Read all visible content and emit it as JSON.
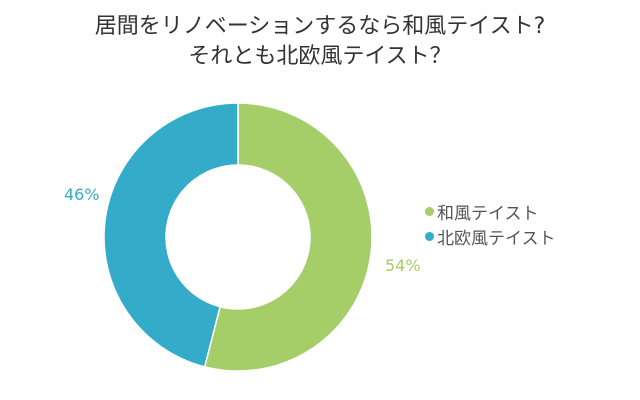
{
  "title": {
    "line1": "居間をリノベーションするなら和風テイスト?",
    "line2": "それとも北欧風テイスト？"
  },
  "colors": {
    "wafu": "#a5cd68",
    "hokuo": "#33abc9"
  },
  "labels": {
    "wafu_pct": "54%",
    "hokuo_pct": "46%"
  },
  "legend": [
    {
      "label": "和風テイスト",
      "color": "#a5cd68"
    },
    {
      "label": "北欧風テイスト",
      "color": "#33abc9"
    }
  ],
  "chart_data": {
    "type": "pie",
    "variant": "donut",
    "title": "居間をリノベーションするなら和風テイスト? それとも北欧風テイスト？",
    "categories": [
      "和風テイスト",
      "北欧風テイスト"
    ],
    "values": [
      54,
      46
    ],
    "unit": "%",
    "colors": [
      "#a5cd68",
      "#33abc9"
    ],
    "legend_position": "right",
    "start_angle": "12 o'clock, clockwise"
  }
}
